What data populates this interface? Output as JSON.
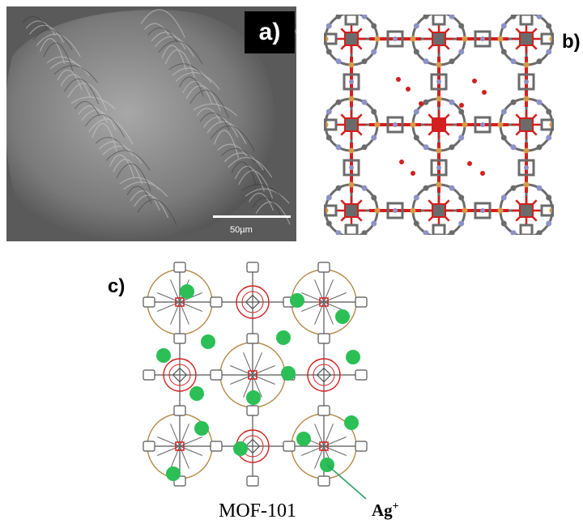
{
  "panels": {
    "a": {
      "label": "a)",
      "scale_bar_text": "50µm"
    },
    "b": {
      "label": "b)"
    },
    "c": {
      "label": "c)",
      "caption": "MOF-101",
      "ion_label": "Ag",
      "ion_charge": "+"
    }
  },
  "colors": {
    "metal_cluster": "#d21f1f",
    "carbon": "#6b6b6b",
    "nitrogen": "#8e92c8",
    "oxygen_linker": "#d89a4a",
    "silver_ion": "#2bbf56",
    "cage_outline": "#b5894a"
  }
}
